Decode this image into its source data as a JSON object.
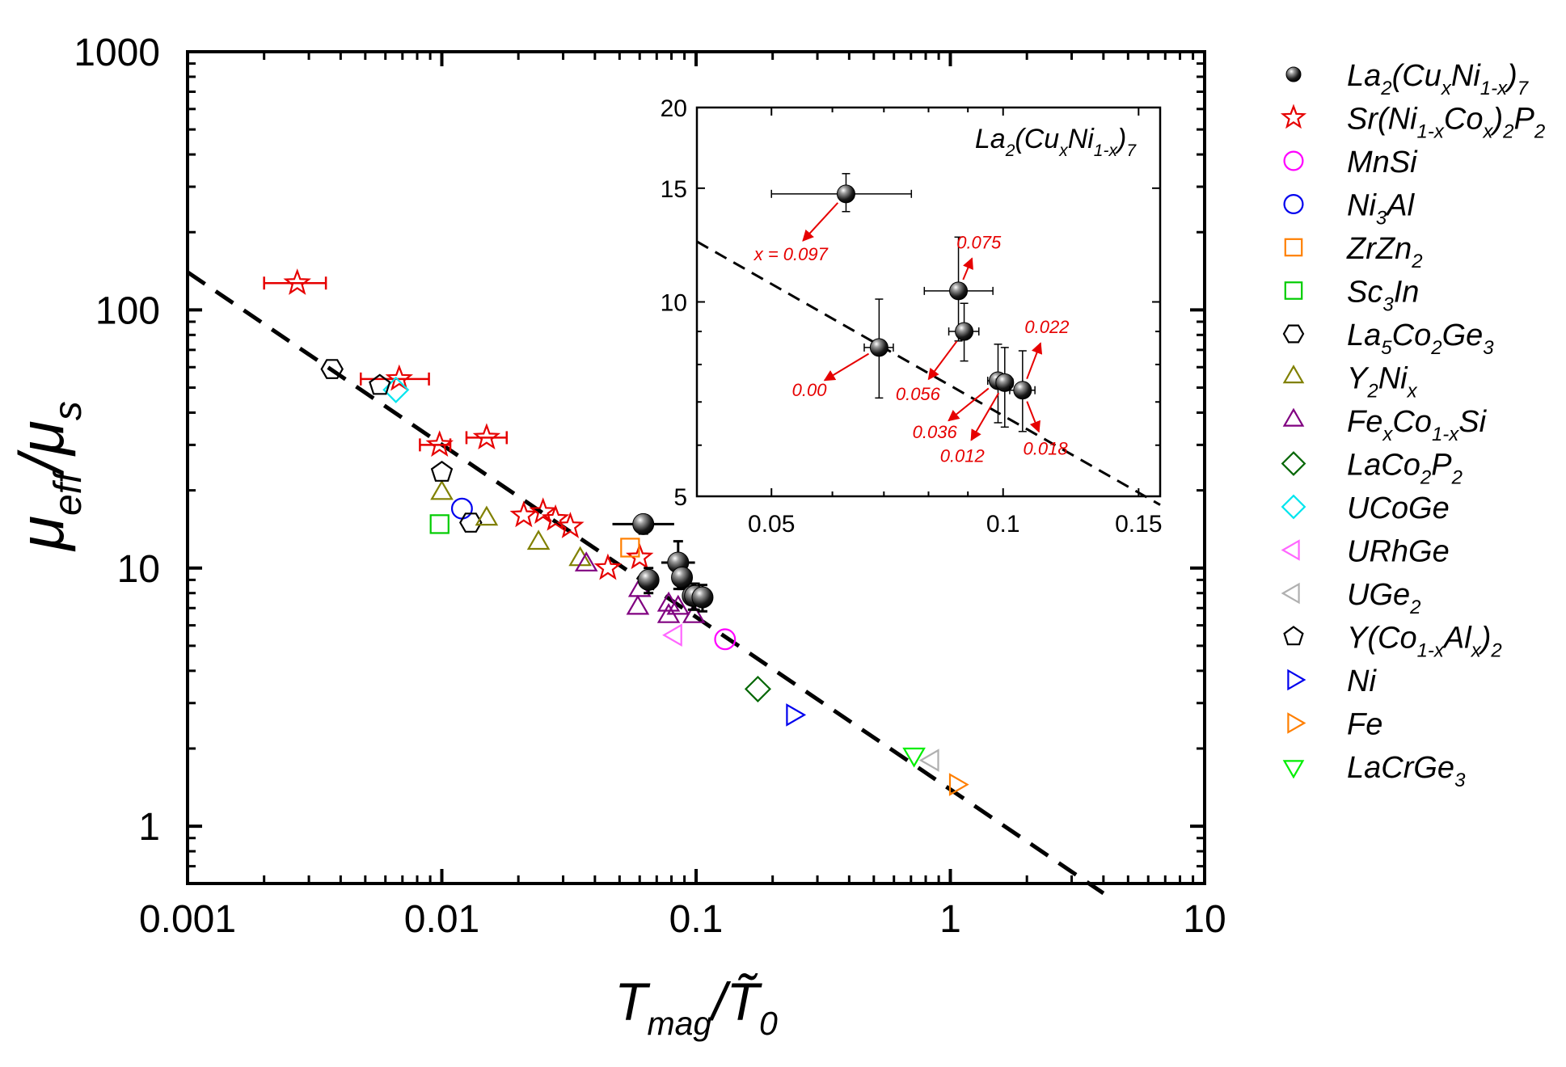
{
  "chart_data": {
    "type": "scatter",
    "xscale": "log",
    "yscale": "log",
    "xlim": [
      0.001,
      10
    ],
    "ylim": [
      0.6,
      1000
    ],
    "x_ticks": [
      0.001,
      0.01,
      0.1,
      1,
      10
    ],
    "x_tick_labels": [
      "0.001",
      "0.01",
      "0.1",
      "1",
      "10"
    ],
    "y_ticks": [
      1,
      10,
      100,
      1000
    ],
    "y_tick_labels": [
      "1",
      "10",
      "100",
      "1000"
    ],
    "ylabel": {
      "base": "μ",
      "sub1": "eff",
      "slash": "/",
      "base2": "μ",
      "sub2": "s"
    },
    "xlabel": {
      "base": "T",
      "sub1": "mag",
      "slash": "/",
      "base2": "T̃",
      "sub2": "0"
    },
    "fit_line": {
      "style": "dashed",
      "points": [
        [
          0.001,
          140
        ],
        [
          4.0,
          0.55
        ]
      ]
    },
    "series": [
      {
        "key": "la2",
        "marker": "sphere",
        "color": "#000000",
        "legend": [
          [
            "La",
            ""
          ],
          [
            "2",
            "sub"
          ],
          [
            "(Cu",
            ""
          ],
          [
            "x",
            "sub"
          ],
          [
            "Ni",
            ""
          ],
          [
            "1-x",
            "sub"
          ],
          [
            ")",
            ""
          ],
          [
            "7",
            "sub"
          ]
        ],
        "points": [
          [
            0.062,
            14.8
          ],
          [
            0.065,
            9.0
          ],
          [
            0.085,
            10.5
          ],
          [
            0.088,
            9.2
          ],
          [
            0.097,
            7.8
          ],
          [
            0.099,
            7.8
          ],
          [
            0.106,
            7.7
          ]
        ],
        "xerr": [
          0.02,
          0.004,
          0.014,
          0.004,
          0.006,
          0.006,
          0.005
        ],
        "yerr": [
          1.2,
          1.0,
          2.2,
          0.9,
          0.9,
          0.9,
          0.9
        ]
      },
      {
        "key": "sr",
        "marker": "star",
        "color": "#e60000",
        "legend": [
          [
            "Sr(Ni",
            ""
          ],
          [
            "1-x",
            "sub"
          ],
          [
            "Co",
            ""
          ],
          [
            "x",
            "sub"
          ],
          [
            ")",
            ""
          ],
          [
            "2",
            "sub"
          ],
          [
            "P",
            ""
          ],
          [
            "2",
            "sub"
          ]
        ],
        "points": [
          [
            0.0027,
            127
          ],
          [
            0.0068,
            54
          ],
          [
            0.0098,
            30
          ],
          [
            0.015,
            32
          ],
          [
            0.021,
            16
          ],
          [
            0.025,
            16.5
          ],
          [
            0.028,
            15.5
          ],
          [
            0.032,
            14.5
          ],
          [
            0.045,
            10
          ],
          [
            0.06,
            11
          ]
        ],
        "xerr_pts": [
          [
            0.0027,
            0.002,
            0.0035
          ],
          [
            0.0068,
            0.0048,
            0.0089
          ],
          [
            0.0098,
            0.0082,
            0.0108
          ],
          [
            0.015,
            0.0125,
            0.018
          ]
        ]
      },
      {
        "key": "mnsi",
        "marker": "circle",
        "color": "#ff00ff",
        "legend": [
          [
            "MnSi",
            ""
          ]
        ],
        "points": [
          [
            0.13,
            5.3
          ]
        ]
      },
      {
        "key": "ni3al",
        "marker": "circle",
        "color": "#0000ee",
        "legend": [
          [
            "Ni",
            ""
          ],
          [
            "3",
            "sub"
          ],
          [
            "Al",
            ""
          ]
        ],
        "points": [
          [
            0.012,
            17
          ]
        ]
      },
      {
        "key": "zrzn2",
        "marker": "square",
        "color": "#ff7f00",
        "legend": [
          [
            "ZrZn",
            ""
          ],
          [
            "2",
            "sub"
          ]
        ],
        "points": [
          [
            0.055,
            12
          ]
        ]
      },
      {
        "key": "sc3in",
        "marker": "square",
        "color": "#00cc00",
        "legend": [
          [
            "Sc",
            ""
          ],
          [
            "3",
            "sub"
          ],
          [
            "In",
            ""
          ]
        ],
        "points": [
          [
            0.0098,
            14.8
          ]
        ]
      },
      {
        "key": "la5",
        "marker": "hexagon",
        "color": "#000000",
        "legend": [
          [
            "La",
            ""
          ],
          [
            "5",
            "sub"
          ],
          [
            "Co",
            ""
          ],
          [
            "2",
            "sub"
          ],
          [
            "Ge",
            ""
          ],
          [
            "3",
            "sub"
          ]
        ],
        "points": [
          [
            0.013,
            15
          ],
          [
            0.0037,
            59
          ]
        ]
      },
      {
        "key": "y2ni",
        "marker": "triangle-up",
        "color": "#808000",
        "legend": [
          [
            "Y",
            ""
          ],
          [
            "2",
            "sub"
          ],
          [
            "Ni",
            ""
          ],
          [
            "x",
            "sub"
          ]
        ],
        "points": [
          [
            0.01,
            19.5
          ],
          [
            0.015,
            15.5
          ],
          [
            0.024,
            12.5
          ],
          [
            0.035,
            10.8
          ]
        ]
      },
      {
        "key": "fecosi",
        "marker": "triangle-up",
        "color": "#800080",
        "legend": [
          [
            "Fe",
            ""
          ],
          [
            "x",
            "sub"
          ],
          [
            "Co",
            ""
          ],
          [
            "1-x",
            "sub"
          ],
          [
            "Si",
            ""
          ]
        ],
        "points": [
          [
            0.037,
            10.3
          ],
          [
            0.06,
            8.2
          ],
          [
            0.059,
            7.0
          ],
          [
            0.078,
            7.2
          ],
          [
            0.085,
            7.0
          ],
          [
            0.078,
            6.5
          ],
          [
            0.098,
            6.5
          ]
        ]
      },
      {
        "key": "laco2p2",
        "marker": "diamond",
        "color": "#006600",
        "legend": [
          [
            "LaCo",
            ""
          ],
          [
            "2",
            "sub"
          ],
          [
            "P",
            ""
          ],
          [
            "2",
            "sub"
          ]
        ],
        "points": [
          [
            0.175,
            3.4
          ]
        ]
      },
      {
        "key": "ucoge",
        "marker": "diamond",
        "color": "#00e5ee",
        "legend": [
          [
            "UCoGe",
            ""
          ]
        ],
        "points": [
          [
            0.0066,
            49
          ]
        ]
      },
      {
        "key": "urhge",
        "marker": "triangle-left",
        "color": "#ff66ff",
        "legend": [
          [
            "URhGe",
            ""
          ]
        ],
        "points": [
          [
            0.083,
            5.5
          ]
        ]
      },
      {
        "key": "uge2",
        "marker": "triangle-left",
        "color": "#b0b0b0",
        "legend": [
          [
            "UGe",
            ""
          ],
          [
            "2",
            "sub"
          ]
        ],
        "points": [
          [
            0.85,
            1.8
          ]
        ]
      },
      {
        "key": "yco",
        "marker": "pentagon",
        "color": "#000000",
        "legend": [
          [
            "Y(Co",
            ""
          ],
          [
            "1-x",
            "sub"
          ],
          [
            "Al",
            ""
          ],
          [
            "x",
            "sub"
          ],
          [
            ")",
            ""
          ],
          [
            "2",
            "sub"
          ]
        ],
        "points": [
          [
            0.0057,
            51
          ],
          [
            0.01,
            23.5
          ]
        ]
      },
      {
        "key": "ni",
        "marker": "triangle-right",
        "color": "#0000ee",
        "legend": [
          [
            "Ni",
            ""
          ]
        ],
        "points": [
          [
            0.24,
            2.7
          ]
        ]
      },
      {
        "key": "fe",
        "marker": "triangle-right",
        "color": "#ff7f00",
        "legend": [
          [
            "Fe",
            ""
          ]
        ],
        "points": [
          [
            1.05,
            1.45
          ]
        ]
      },
      {
        "key": "lacrge3",
        "marker": "triangle-down",
        "color": "#00ee00",
        "legend": [
          [
            "LaCrGe",
            ""
          ],
          [
            "3",
            "sub"
          ]
        ],
        "points": [
          [
            0.72,
            1.9
          ]
        ]
      }
    ],
    "inset": {
      "title": [
        [
          "La",
          ""
        ],
        [
          "2",
          "sub"
        ],
        [
          "(Cu",
          ""
        ],
        [
          "x",
          "sub"
        ],
        [
          "Ni",
          ""
        ],
        [
          "1-x",
          "sub"
        ],
        [
          ")",
          ""
        ],
        [
          "7",
          "sub"
        ]
      ],
      "xscale": "log",
      "yscale": "log",
      "xlim": [
        0.04,
        0.16
      ],
      "ylim": [
        5,
        20
      ],
      "x_ticks": [
        0.05,
        0.1,
        0.15
      ],
      "x_tick_labels": [
        "0.05",
        "0.1",
        "0.15"
      ],
      "y_ticks": [
        5,
        10,
        15,
        20
      ],
      "y_tick_labels": [
        "5",
        "10",
        "15",
        "20"
      ],
      "fit_line": [
        [
          0.04,
          12.4
        ],
        [
          0.16,
          4.85
        ]
      ],
      "points": [
        {
          "x": 0.0625,
          "y": 14.7,
          "xerr": [
            0.05,
            0.076
          ],
          "yerr": [
            13.8,
            15.8
          ],
          "label": "x = 0.097",
          "label_at": [
            0.053,
            11.6
          ]
        },
        {
          "x": 0.069,
          "y": 8.5,
          "xerr": [
            0.066,
            0.072
          ],
          "yerr": [
            7.1,
            10.1
          ],
          "label": "0.00",
          "label_at": [
            0.056,
            7.15
          ]
        },
        {
          "x": 0.0875,
          "y": 10.4,
          "xerr": [
            0.079,
            0.097
          ],
          "yerr": [
            8.7,
            12.6
          ],
          "label": "0.075",
          "label_at": [
            0.093,
            12.1
          ]
        },
        {
          "x": 0.089,
          "y": 9.0,
          "xerr": [
            0.085,
            0.093
          ],
          "yerr": [
            8.1,
            9.95
          ],
          "label": "0.056",
          "label_at": [
            0.0775,
            7.05
          ]
        },
        {
          "x": 0.0985,
          "y": 7.55,
          "xerr": [
            0.0955,
            0.101
          ],
          "yerr": [
            6.5,
            8.6
          ],
          "label": "0.036",
          "label_at": [
            0.0815,
            6.15
          ]
        },
        {
          "x": 0.1005,
          "y": 7.5,
          "xerr": [
            0.098,
            0.103
          ],
          "yerr": [
            6.4,
            8.5
          ],
          "label": "0.012",
          "label_at": [
            0.0885,
            5.65
          ]
        },
        {
          "x": 0.106,
          "y": 7.3,
          "xerr": [
            0.102,
            0.11
          ],
          "yerr": [
            6.3,
            8.4
          ],
          "label": "0.018",
          "label_at": [
            0.1135,
            5.8
          ]
        },
        {
          "x": 0.106,
          "y": 7.3,
          "xerr": [
            0.102,
            0.11
          ],
          "yerr": [
            6.3,
            8.4
          ],
          "label": "0.022",
          "label_at": [
            0.114,
            8.95
          ]
        }
      ]
    }
  }
}
